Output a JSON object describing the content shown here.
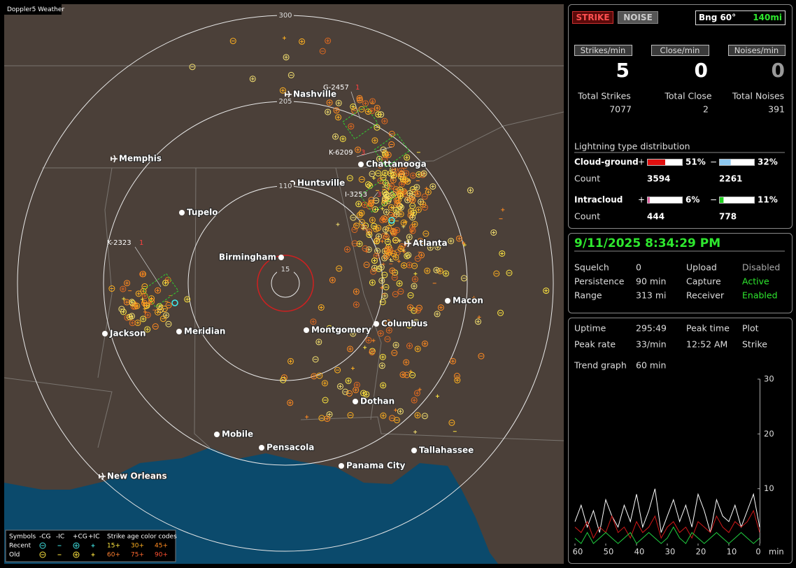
{
  "map": {
    "title": "Doppler5 Weather",
    "ring_labels": [
      300,
      205,
      110,
      15
    ],
    "cities": [
      "Nashville",
      "Memphis",
      "Chattanooga",
      "Huntsville",
      "Tupelo",
      "Birmingham",
      "Atlanta",
      "Macon",
      "Columbus",
      "Montgomery",
      "Meridian",
      "Jackson",
      "Dothan",
      "Mobile",
      "Pensacola",
      "Tallahassee",
      "Panama City",
      "New Orleans"
    ],
    "storms": [
      {
        "id": "G-2457",
        "count": "1"
      },
      {
        "id": "K-6209",
        "count": "3"
      },
      {
        "id": "I-3253",
        "count": "3"
      },
      {
        "id": "K-2323",
        "count": "1"
      }
    ],
    "legend": {
      "headers": [
        "Symbols",
        "-CG",
        "-IC",
        "+CG",
        "+IC",
        "Strike age color codes"
      ],
      "recent": "Recent",
      "old": "Old",
      "recent_ages": [
        "15+",
        "30+",
        "45+"
      ],
      "old_ages": [
        "60+",
        "75+",
        "90+"
      ]
    }
  },
  "header": {
    "strike": "STRIKE",
    "noise": "NOISE",
    "bearing": "Bng 60°",
    "range": "140mi"
  },
  "rates": {
    "labels": [
      "Strikes/min",
      "Close/min",
      "Noises/min"
    ],
    "values": [
      5,
      0,
      0
    ]
  },
  "totals": {
    "labels": [
      "Total Strikes",
      "Total Close",
      "Total Noises"
    ],
    "values": [
      7077,
      2,
      391
    ]
  },
  "distribution": {
    "title": "Lightning type distribution",
    "count_label": "Count",
    "rows": [
      {
        "name": "Cloud-ground",
        "positive": {
          "sign": "+",
          "percent": 51,
          "percent_label": "51%",
          "count": 3594
        },
        "negative": {
          "sign": "−",
          "percent": 32,
          "percent_label": "32%",
          "count": 2261
        }
      },
      {
        "name": "Intracloud",
        "positive": {
          "sign": "+",
          "percent": 6,
          "percent_label": "6%",
          "count": 444
        },
        "negative": {
          "sign": "−",
          "percent": 11,
          "percent_label": "11%",
          "count": 778
        }
      }
    ]
  },
  "status": {
    "datetime": "9/11/2025 8:34:29 PM",
    "rows": [
      [
        "Squelch",
        "0",
        "Upload",
        "Disabled"
      ],
      [
        "Persistence",
        "90 min",
        "Capture",
        "Active"
      ],
      [
        "Range",
        "313 mi",
        "Receiver",
        "Enabled"
      ]
    ]
  },
  "stats": {
    "rows": [
      [
        "Uptime",
        "295:49",
        "Peak time",
        "Plot"
      ],
      [
        "Peak rate",
        "33/min",
        "12:52 AM",
        "Strike"
      ]
    ],
    "trend_label": "Trend graph",
    "trend_value": "60 min"
  },
  "trend_graph": {
    "type": "line",
    "x": [
      60,
      58,
      56,
      54,
      52,
      50,
      48,
      46,
      44,
      42,
      40,
      38,
      36,
      34,
      32,
      30,
      28,
      26,
      24,
      22,
      20,
      18,
      16,
      14,
      12,
      10,
      8,
      6,
      4,
      2,
      0
    ],
    "xlim": [
      60,
      0
    ],
    "ylim": [
      0,
      30
    ],
    "xticks": [
      60,
      50,
      40,
      30,
      20,
      10,
      0
    ],
    "x_unit": "min",
    "yticks": [
      10,
      20,
      30
    ],
    "series": [
      {
        "color": "#ffffff",
        "values": [
          4,
          7,
          3,
          6,
          2,
          8,
          5,
          3,
          7,
          4,
          9,
          3,
          6,
          10,
          2,
          5,
          8,
          4,
          7,
          3,
          9,
          6,
          2,
          8,
          5,
          4,
          7,
          3,
          6,
          9,
          3
        ]
      },
      {
        "color": "#d01818",
        "values": [
          3,
          2,
          4,
          1,
          3,
          2,
          5,
          2,
          3,
          1,
          4,
          2,
          3,
          5,
          1,
          3,
          4,
          2,
          3,
          1,
          4,
          3,
          2,
          5,
          3,
          2,
          4,
          3,
          4,
          6,
          2
        ]
      },
      {
        "color": "#20d040",
        "values": [
          1,
          0,
          2,
          0,
          1,
          2,
          1,
          0,
          1,
          2,
          0,
          1,
          2,
          1,
          0,
          1,
          3,
          1,
          0,
          2,
          1,
          0,
          1,
          2,
          1,
          0,
          1,
          2,
          1,
          0,
          1
        ]
      }
    ]
  }
}
